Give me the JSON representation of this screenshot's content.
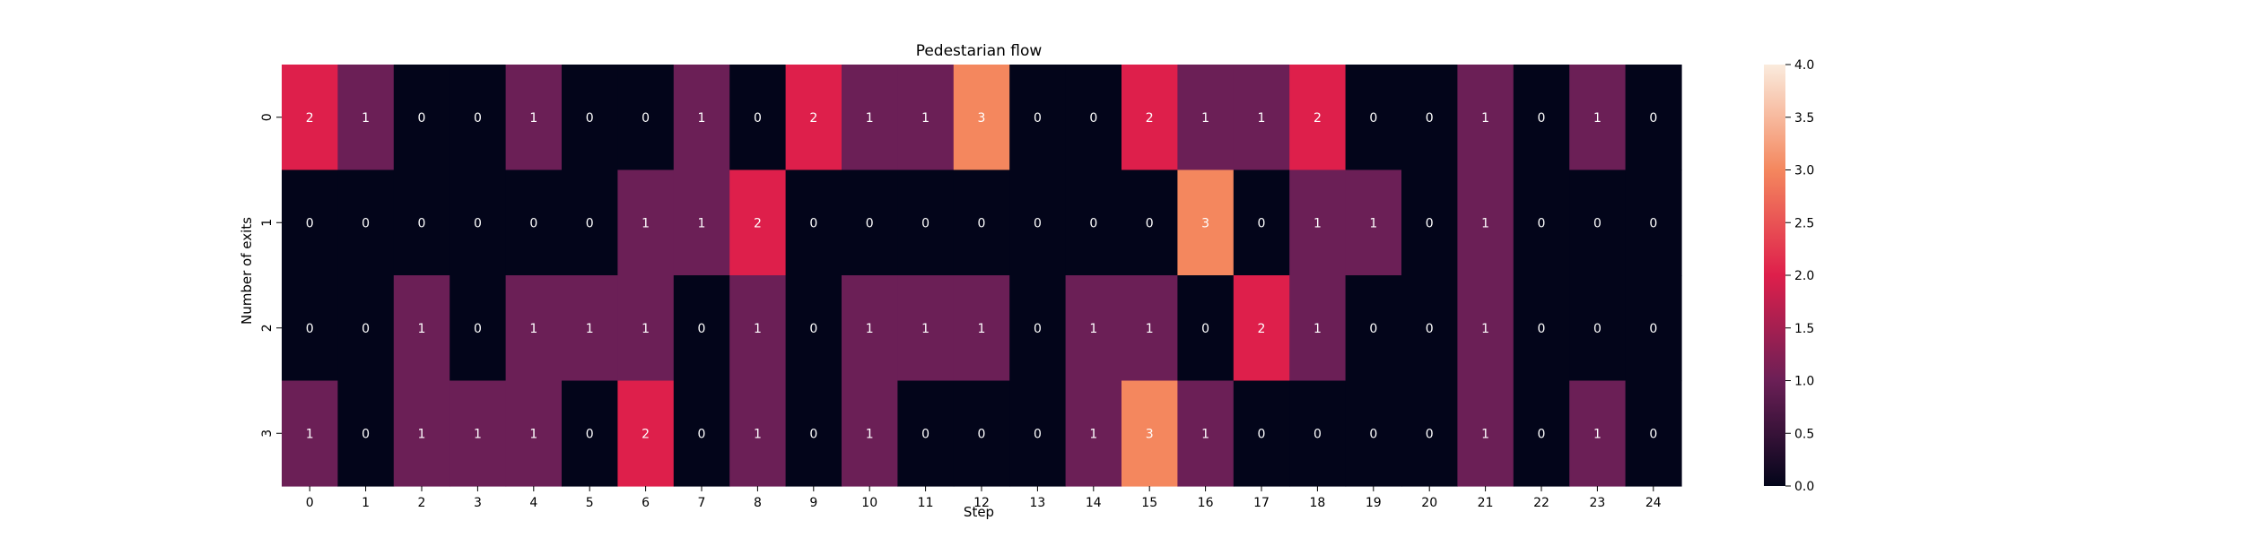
{
  "chart_data": {
    "type": "heatmap",
    "title": "Pedestarian flow",
    "xlabel": "Step",
    "ylabel": "Number of exits",
    "x_ticks": [
      "0",
      "1",
      "2",
      "3",
      "4",
      "5",
      "6",
      "7",
      "8",
      "9",
      "10",
      "11",
      "12",
      "13",
      "14",
      "15",
      "16",
      "17",
      "18",
      "19",
      "20",
      "21",
      "22",
      "23",
      "24"
    ],
    "y_ticks": [
      "0",
      "1",
      "2",
      "3"
    ],
    "values": [
      [
        2,
        1,
        0,
        0,
        1,
        0,
        0,
        1,
        0,
        2,
        1,
        1,
        3,
        0,
        0,
        2,
        1,
        1,
        2,
        0,
        0,
        1,
        0,
        1,
        0
      ],
      [
        0,
        0,
        0,
        0,
        0,
        0,
        1,
        1,
        2,
        0,
        0,
        0,
        0,
        0,
        0,
        0,
        3,
        0,
        1,
        1,
        0,
        1,
        0,
        0,
        0
      ],
      [
        0,
        0,
        1,
        0,
        1,
        1,
        1,
        0,
        1,
        0,
        1,
        1,
        1,
        0,
        1,
        1,
        0,
        2,
        1,
        0,
        0,
        1,
        0,
        0,
        0
      ],
      [
        1,
        0,
        1,
        1,
        1,
        0,
        2,
        0,
        1,
        0,
        1,
        0,
        0,
        0,
        1,
        3,
        1,
        0,
        0,
        0,
        0,
        1,
        0,
        1,
        0
      ]
    ],
    "colorbar": {
      "range": [
        0,
        4
      ],
      "ticks": [
        "0.0",
        "0.5",
        "1.0",
        "1.5",
        "2.0",
        "2.5",
        "3.0",
        "3.5",
        "4.0"
      ]
    },
    "colors": {
      "c0": "#03051a",
      "c1": "#6b1f56",
      "c2": "#de1f4b",
      "c3": "#f4875e",
      "c4": "#faebdd",
      "label_light": "#ffffff",
      "label_dark": "#262626"
    }
  }
}
